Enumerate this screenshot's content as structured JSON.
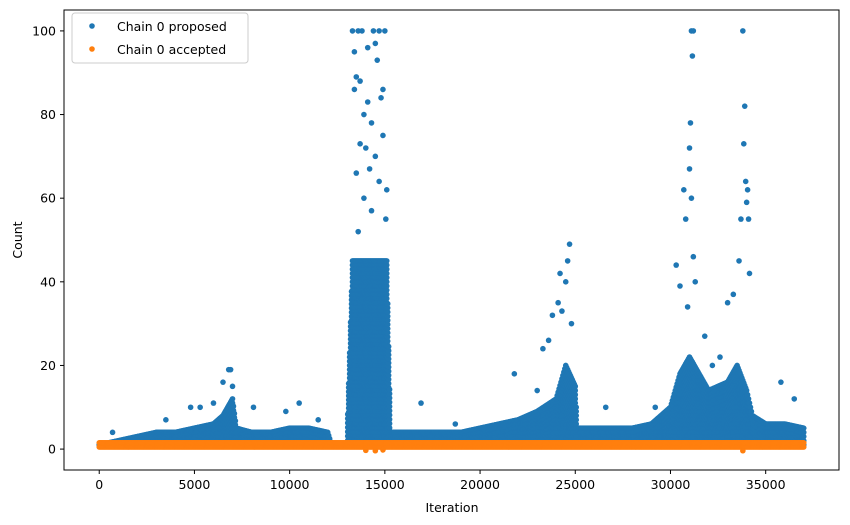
{
  "chart_data": {
    "type": "scatter",
    "title": "",
    "xlabel": "Iteration",
    "ylabel": "Count",
    "xlim": [
      -1850,
      38850
    ],
    "ylim": [
      -5,
      105
    ],
    "xticks": [
      0,
      5000,
      10000,
      15000,
      20000,
      25000,
      30000,
      35000
    ],
    "yticks": [
      0,
      20,
      40,
      60,
      80,
      100
    ],
    "grid": false,
    "legend_position": "top-left",
    "colors": {
      "proposed": "#1f77b4",
      "accepted": "#ff7f0e"
    },
    "series": [
      {
        "name": "Chain 0 proposed",
        "band": {
          "x": [
            0,
            1000,
            2000,
            3000,
            4000,
            5000,
            6000,
            6500,
            7000,
            7200,
            8000,
            9000,
            10000,
            11000,
            12000,
            12200,
            13000,
            13300,
            15100,
            15300,
            17000,
            19000,
            20000,
            21000,
            22000,
            23000,
            24000,
            24500,
            25000,
            25100,
            26000,
            27000,
            28000,
            29000,
            30000,
            30500,
            31000,
            31500,
            32000,
            33000,
            33500,
            34000,
            34300,
            35000,
            36000,
            37000
          ],
          "y": [
            1,
            2,
            3,
            4,
            4,
            5,
            6,
            8,
            12,
            5,
            4,
            4,
            5,
            5,
            4,
            1,
            1,
            45,
            45,
            4,
            4,
            4,
            5,
            6,
            7,
            9,
            12,
            20,
            15,
            5,
            5,
            5,
            5,
            6,
            10,
            18,
            22,
            18,
            14,
            16,
            20,
            14,
            8,
            6,
            6,
            5
          ]
        },
        "points": [
          {
            "x": 700,
            "y": 4
          },
          {
            "x": 3500,
            "y": 7
          },
          {
            "x": 4800,
            "y": 10
          },
          {
            "x": 5300,
            "y": 10
          },
          {
            "x": 6000,
            "y": 11
          },
          {
            "x": 6500,
            "y": 16
          },
          {
            "x": 6800,
            "y": 19
          },
          {
            "x": 6900,
            "y": 19
          },
          {
            "x": 7000,
            "y": 15
          },
          {
            "x": 8100,
            "y": 10
          },
          {
            "x": 9800,
            "y": 9
          },
          {
            "x": 10500,
            "y": 11
          },
          {
            "x": 11500,
            "y": 7
          },
          {
            "x": 13300,
            "y": 100
          },
          {
            "x": 13400,
            "y": 95
          },
          {
            "x": 13400,
            "y": 86
          },
          {
            "x": 13500,
            "y": 89
          },
          {
            "x": 13600,
            "y": 100
          },
          {
            "x": 13700,
            "y": 88
          },
          {
            "x": 13800,
            "y": 100
          },
          {
            "x": 13900,
            "y": 80
          },
          {
            "x": 14000,
            "y": 72
          },
          {
            "x": 14100,
            "y": 96
          },
          {
            "x": 14200,
            "y": 67
          },
          {
            "x": 14300,
            "y": 78
          },
          {
            "x": 14400,
            "y": 100
          },
          {
            "x": 14500,
            "y": 97
          },
          {
            "x": 14600,
            "y": 93
          },
          {
            "x": 14700,
            "y": 100
          },
          {
            "x": 14800,
            "y": 84
          },
          {
            "x": 14900,
            "y": 75
          },
          {
            "x": 15000,
            "y": 100
          },
          {
            "x": 15100,
            "y": 62
          },
          {
            "x": 13500,
            "y": 66
          },
          {
            "x": 13700,
            "y": 73
          },
          {
            "x": 14100,
            "y": 83
          },
          {
            "x": 14500,
            "y": 70
          },
          {
            "x": 14900,
            "y": 86
          },
          {
            "x": 13600,
            "y": 52
          },
          {
            "x": 13900,
            "y": 60
          },
          {
            "x": 14300,
            "y": 57
          },
          {
            "x": 14700,
            "y": 64
          },
          {
            "x": 15050,
            "y": 55
          },
          {
            "x": 16900,
            "y": 11
          },
          {
            "x": 18700,
            "y": 6
          },
          {
            "x": 21800,
            "y": 18
          },
          {
            "x": 23000,
            "y": 14
          },
          {
            "x": 23300,
            "y": 24
          },
          {
            "x": 23600,
            "y": 26
          },
          {
            "x": 23800,
            "y": 32
          },
          {
            "x": 24100,
            "y": 35
          },
          {
            "x": 24200,
            "y": 42
          },
          {
            "x": 24300,
            "y": 33
          },
          {
            "x": 24500,
            "y": 40
          },
          {
            "x": 24600,
            "y": 45
          },
          {
            "x": 24700,
            "y": 49
          },
          {
            "x": 24800,
            "y": 30
          },
          {
            "x": 26600,
            "y": 10
          },
          {
            "x": 29200,
            "y": 10
          },
          {
            "x": 30300,
            "y": 44
          },
          {
            "x": 30500,
            "y": 39
          },
          {
            "x": 30700,
            "y": 62
          },
          {
            "x": 30800,
            "y": 55
          },
          {
            "x": 30900,
            "y": 34
          },
          {
            "x": 31000,
            "y": 72
          },
          {
            "x": 31050,
            "y": 78
          },
          {
            "x": 31100,
            "y": 100
          },
          {
            "x": 31150,
            "y": 94
          },
          {
            "x": 31200,
            "y": 100
          },
          {
            "x": 31000,
            "y": 67
          },
          {
            "x": 31100,
            "y": 60
          },
          {
            "x": 31200,
            "y": 46
          },
          {
            "x": 31300,
            "y": 40
          },
          {
            "x": 31800,
            "y": 27
          },
          {
            "x": 32200,
            "y": 20
          },
          {
            "x": 32600,
            "y": 22
          },
          {
            "x": 33000,
            "y": 35
          },
          {
            "x": 33300,
            "y": 37
          },
          {
            "x": 33600,
            "y": 45
          },
          {
            "x": 33700,
            "y": 55
          },
          {
            "x": 33800,
            "y": 100
          },
          {
            "x": 33850,
            "y": 73
          },
          {
            "x": 33900,
            "y": 82
          },
          {
            "x": 33950,
            "y": 64
          },
          {
            "x": 34000,
            "y": 59
          },
          {
            "x": 34050,
            "y": 62
          },
          {
            "x": 34100,
            "y": 55
          },
          {
            "x": 34150,
            "y": 42
          },
          {
            "x": 35800,
            "y": 16
          },
          {
            "x": 36500,
            "y": 12
          }
        ]
      },
      {
        "name": "Chain 0 accepted",
        "band": {
          "x": [
            0,
            37000
          ],
          "y": [
            0.5,
            1.5
          ]
        },
        "points": [
          {
            "x": 14000,
            "y": -0.3
          },
          {
            "x": 14500,
            "y": -0.4
          },
          {
            "x": 14900,
            "y": -0.2
          },
          {
            "x": 33800,
            "y": -0.4
          }
        ]
      }
    ]
  }
}
